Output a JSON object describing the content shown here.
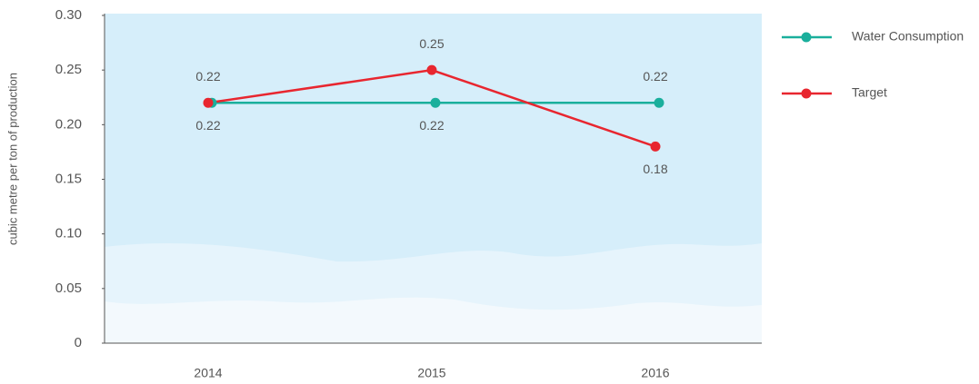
{
  "chart_data": {
    "type": "line",
    "y_label": "cubic metre per ton of production",
    "categories": [
      "2014",
      "2015",
      "2016"
    ],
    "series": [
      {
        "name": "Water Consumption",
        "color": "#1aaf9c",
        "values": [
          0.22,
          0.22,
          0.22
        ]
      },
      {
        "name": "Target",
        "color": "#e8262f",
        "values": [
          0.22,
          0.25,
          0.18
        ]
      }
    ],
    "ylim": [
      0,
      0.3
    ],
    "yticks": [
      0,
      0.05,
      {
        "value": 0.1,
        "label": "0.10"
      },
      0.15,
      {
        "value": 0.2,
        "label": "0.20"
      },
      0.25,
      {
        "value": 0.3,
        "label": "0.30"
      }
    ],
    "grid": false,
    "legend": "right"
  }
}
